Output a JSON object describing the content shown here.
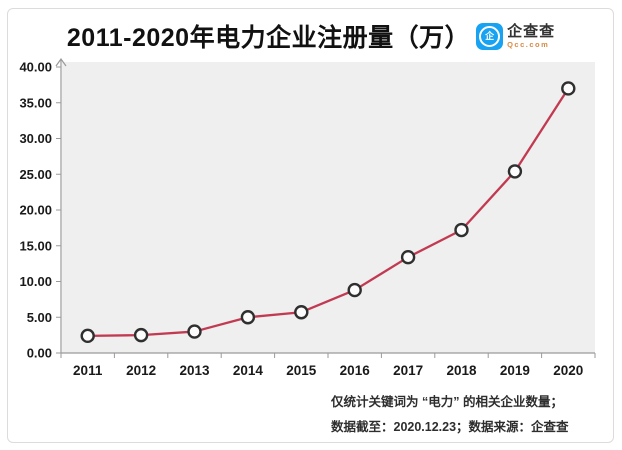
{
  "header": {
    "logo": {
      "brand": "企查查",
      "domain": "Qcc.com",
      "mark": "企"
    }
  },
  "chart_data": {
    "type": "line",
    "title": "2011-2020年电力企业注册量（万）",
    "categories": [
      "2011",
      "2012",
      "2013",
      "2014",
      "2015",
      "2016",
      "2017",
      "2018",
      "2019",
      "2020"
    ],
    "series": [
      {
        "name": "电力企业注册量（万）",
        "values": [
          2.4,
          2.5,
          3.0,
          5.0,
          5.7,
          8.8,
          13.4,
          17.2,
          25.4,
          37.0
        ]
      }
    ],
    "xlabel": "",
    "ylabel": "",
    "ylim": [
      0,
      40
    ],
    "ytick_step": 5,
    "ytick_decimals": 2,
    "grid": false,
    "legend": "none",
    "marker": "open-circle",
    "colors": {
      "line": "#c23a52",
      "marker_stroke": "#2f2f2f",
      "marker_fill": "#fcfcfc",
      "plot_bg": "#efefef",
      "axis": "#9a9a9a",
      "tick_label": "#1a1a1a",
      "logo_blue": "#18a2f2",
      "logo_domain_orange": "#d98a45"
    }
  },
  "footer": {
    "note1": "仅统计关键词为 “电力” 的相关企业数量；",
    "note2": "数据截至：2020.12.23；数据来源：企查查"
  }
}
